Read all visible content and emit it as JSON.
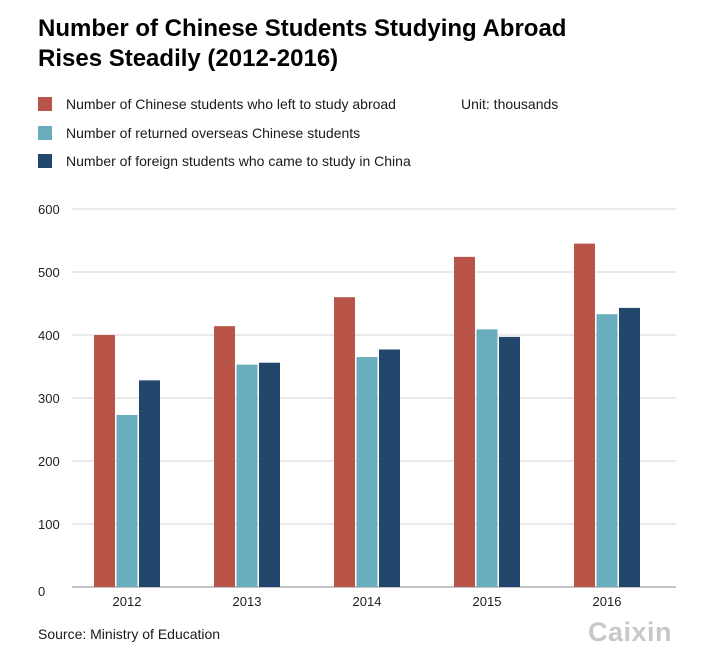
{
  "header": {
    "title_line1": "Number of Chinese Students Studying Abroad",
    "title_line2": "Rises Steadily (2012-2016)"
  },
  "unit_label": "Unit: thousands",
  "source_label": "Source: Ministry of Education",
  "logo_text": "Caixin",
  "chart_data": {
    "type": "bar",
    "title": "Number of Chinese Students Studying Abroad Rises Steadily (2012-2016)",
    "categories": [
      "2012",
      "2013",
      "2014",
      "2015",
      "2016"
    ],
    "series": [
      {
        "name": "Number of Chinese students who left to study abroad",
        "color": "#b85448",
        "values": [
          400,
          414,
          460,
          524,
          545
        ]
      },
      {
        "name": "Number of returned overseas Chinese students",
        "color": "#6aaebd",
        "values": [
          273,
          353,
          365,
          409,
          433
        ]
      },
      {
        "name": "Number of foreign students who came to study in China",
        "color": "#23466d",
        "values": [
          328,
          356,
          377,
          397,
          443
        ]
      }
    ],
    "ylim": [
      0,
      600
    ],
    "yticks": [
      0,
      100,
      200,
      300,
      400,
      500,
      600
    ],
    "grid": true,
    "legend_placement": "top-left"
  }
}
